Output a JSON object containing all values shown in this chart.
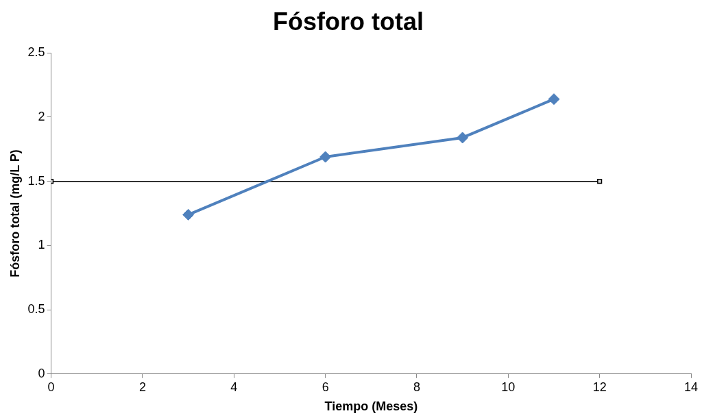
{
  "chart_data": {
    "type": "line",
    "title": "Fósforo total",
    "xlabel": "Tiempo (Meses)",
    "ylabel": "Fósforo total (mg/L P)",
    "series": [
      {
        "color": "#4f81bd",
        "x": [
          3,
          6,
          9,
          11
        ],
        "values": [
          1.24,
          1.69,
          1.84,
          2.14
        ],
        "marker": "diamond"
      },
      {
        "color": "#000000",
        "x": [
          0,
          12
        ],
        "values": [
          1.5,
          1.5
        ],
        "marker": "square"
      }
    ],
    "xlim": [
      0,
      14
    ],
    "xticks": [
      0,
      2,
      4,
      6,
      8,
      10,
      12,
      14
    ],
    "ylim": [
      0,
      2.5
    ],
    "yticks": [
      0,
      0.5,
      1,
      1.5,
      2,
      2.5
    ],
    "grid": false,
    "legend": false
  }
}
